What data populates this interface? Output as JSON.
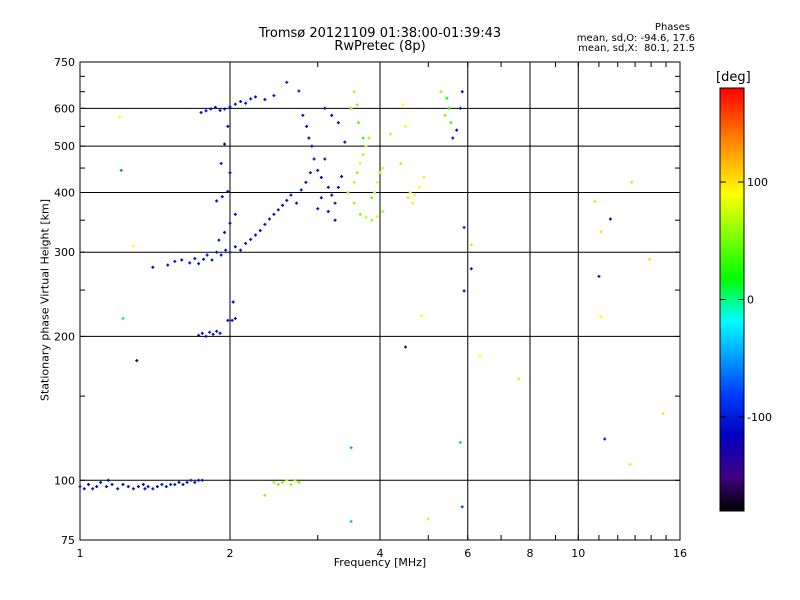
{
  "header": {
    "title": "Tromsø 20121109 01:38:00-01:39:43",
    "subtitle": "RwPretec (8p)",
    "phase_title": "Phases",
    "phase_o": "mean, sd,O: -94.6, 17.6",
    "phase_x": "mean, sd,X:  80.1, 21.5"
  },
  "colorbar": {
    "label": "[deg]",
    "ticks": [
      100,
      0,
      -100
    ],
    "range": [
      -180,
      180
    ],
    "colors": [
      "#ff0000",
      "#ff8000",
      "#ffff00",
      "#00ff00",
      "#00ffff",
      "#0040ff",
      "#0000c0",
      "#400080",
      "#000000"
    ]
  },
  "chart_data": {
    "type": "scatter",
    "title": "Tromsø 20121109 01:38:00-01:39:43",
    "subtitle": "RwPretec (8p)",
    "xlabel": "Frequency [MHz]",
    "ylabel": "Stationary phase Virtual Height [km]",
    "xscale": "log",
    "yscale": "log",
    "xlim": [
      1,
      16
    ],
    "ylim": [
      75,
      750
    ],
    "xticks": [
      1,
      2,
      4,
      6,
      8,
      10,
      16
    ],
    "xtick_labels": [
      "1",
      "2",
      "4",
      "6",
      "8",
      "10",
      "16"
    ],
    "yticks": [
      75,
      100,
      200,
      300,
      400,
      500,
      600,
      750
    ],
    "ytick_labels": [
      "75",
      "100",
      "200",
      "300",
      "400",
      "500",
      "600",
      "750"
    ],
    "grid": true,
    "color_scale": "phase [deg]",
    "points": [
      [
        1.0,
        97,
        -100
      ],
      [
        1.02,
        96,
        -105
      ],
      [
        1.04,
        98,
        -100
      ],
      [
        1.06,
        96,
        -95
      ],
      [
        1.08,
        97,
        -110
      ],
      [
        1.1,
        99,
        -100
      ],
      [
        1.13,
        97,
        -100
      ],
      [
        1.16,
        98,
        -95
      ],
      [
        1.19,
        96,
        -100
      ],
      [
        1.22,
        98,
        -110
      ],
      [
        1.25,
        97,
        -100
      ],
      [
        1.28,
        96,
        -95
      ],
      [
        1.31,
        97,
        -100
      ],
      [
        1.34,
        98,
        -105
      ],
      [
        1.37,
        97,
        -100
      ],
      [
        1.4,
        96,
        -95
      ],
      [
        1.43,
        97,
        -110
      ],
      [
        1.46,
        98,
        -100
      ],
      [
        1.49,
        97,
        -100
      ],
      [
        1.52,
        98,
        -95
      ],
      [
        1.55,
        98,
        -100
      ],
      [
        1.58,
        99,
        -105
      ],
      [
        1.61,
        98,
        -100
      ],
      [
        1.64,
        99,
        -100
      ],
      [
        1.67,
        100,
        -95
      ],
      [
        1.7,
        99,
        -105
      ],
      [
        1.73,
        100,
        -100
      ],
      [
        1.76,
        100,
        -95
      ],
      [
        1.14,
        100,
        -110
      ],
      [
        1.35,
        96,
        -105
      ],
      [
        1.73,
        201,
        -100
      ],
      [
        1.76,
        203,
        -105
      ],
      [
        1.79,
        200,
        -100
      ],
      [
        1.82,
        204,
        -95
      ],
      [
        1.85,
        202,
        -100
      ],
      [
        1.88,
        205,
        -100
      ],
      [
        1.91,
        203,
        -105
      ],
      [
        1.98,
        216,
        -100
      ],
      [
        2.02,
        216,
        -100
      ],
      [
        2.05,
        218,
        -95
      ],
      [
        2.03,
        236,
        -110
      ],
      [
        1.55,
        287,
        -100
      ],
      [
        1.6,
        289,
        -105
      ],
      [
        1.66,
        285,
        -100
      ],
      [
        1.7,
        291,
        -100
      ],
      [
        1.73,
        284,
        -95
      ],
      [
        1.77,
        290,
        -100
      ],
      [
        1.8,
        296,
        -100
      ],
      [
        1.84,
        289,
        -105
      ],
      [
        1.88,
        300,
        -100
      ],
      [
        1.92,
        296,
        -95
      ],
      [
        1.96,
        303,
        -100
      ],
      [
        2.0,
        300,
        -100
      ],
      [
        2.05,
        308,
        -105
      ],
      [
        2.1,
        303,
        -100
      ],
      [
        2.15,
        313,
        -95
      ],
      [
        2.2,
        319,
        -100
      ],
      [
        2.25,
        326,
        -100
      ],
      [
        2.3,
        333,
        -105
      ],
      [
        2.35,
        343,
        -100
      ],
      [
        2.4,
        352,
        -95
      ],
      [
        2.45,
        360,
        -100
      ],
      [
        2.5,
        368,
        -100
      ],
      [
        2.55,
        376,
        -105
      ],
      [
        2.6,
        385,
        -100
      ],
      [
        2.65,
        395,
        -95
      ],
      [
        2.72,
        380,
        -100
      ],
      [
        2.78,
        405,
        -100
      ],
      [
        2.84,
        420,
        -105
      ],
      [
        2.9,
        440,
        -100
      ],
      [
        1.9,
        318,
        -100
      ],
      [
        1.95,
        330,
        -105
      ],
      [
        2.0,
        345,
        -100
      ],
      [
        2.05,
        360,
        -100
      ],
      [
        1.88,
        384,
        -100
      ],
      [
        1.93,
        392,
        -105
      ],
      [
        1.98,
        402,
        -100
      ],
      [
        1.92,
        460,
        -100
      ],
      [
        2.0,
        440,
        -105
      ],
      [
        1.75,
        588,
        -100
      ],
      [
        1.79,
        593,
        -105
      ],
      [
        1.83,
        598,
        -100
      ],
      [
        1.87,
        603,
        -95
      ],
      [
        1.91,
        594,
        -100
      ],
      [
        1.95,
        598,
        -100
      ],
      [
        2.0,
        604,
        -105
      ],
      [
        2.05,
        612,
        -100
      ],
      [
        2.1,
        620,
        -95
      ],
      [
        2.15,
        615,
        -100
      ],
      [
        2.2,
        628,
        -100
      ],
      [
        2.25,
        634,
        -105
      ],
      [
        2.35,
        626,
        -100
      ],
      [
        2.45,
        638,
        -95
      ],
      [
        1.98,
        550,
        -100
      ],
      [
        1.95,
        505,
        -105
      ],
      [
        2.6,
        680,
        -90
      ],
      [
        2.75,
        652,
        -85
      ],
      [
        2.8,
        580,
        -100
      ],
      [
        2.85,
        550,
        -105
      ],
      [
        2.88,
        520,
        -110
      ],
      [
        2.92,
        500,
        -100
      ],
      [
        2.95,
        470,
        -120
      ],
      [
        3.0,
        445,
        -130
      ],
      [
        3.05,
        430,
        -110
      ],
      [
        3.1,
        470,
        -125
      ],
      [
        3.15,
        410,
        -140
      ],
      [
        3.2,
        395,
        -130
      ],
      [
        3.25,
        380,
        -145
      ],
      [
        3.3,
        410,
        -120
      ],
      [
        3.35,
        432,
        -110
      ],
      [
        3.1,
        600,
        -115
      ],
      [
        3.2,
        580,
        -110
      ],
      [
        3.3,
        560,
        -130
      ],
      [
        3.4,
        510,
        -125
      ],
      [
        3.15,
        365,
        -120
      ],
      [
        3.25,
        350,
        -110
      ],
      [
        3.05,
        390,
        -115
      ],
      [
        3.0,
        370,
        -100
      ],
      [
        3.45,
        400,
        70
      ],
      [
        3.55,
        420,
        80
      ],
      [
        3.6,
        440,
        65
      ],
      [
        3.65,
        460,
        90
      ],
      [
        3.7,
        480,
        75
      ],
      [
        3.75,
        500,
        85
      ],
      [
        3.8,
        520,
        70
      ],
      [
        3.85,
        390,
        60
      ],
      [
        3.9,
        400,
        80
      ],
      [
        3.95,
        420,
        90
      ],
      [
        4.0,
        440,
        75
      ],
      [
        4.05,
        450,
        85
      ],
      [
        3.55,
        380,
        70
      ],
      [
        3.65,
        360,
        60
      ],
      [
        3.75,
        355,
        80
      ],
      [
        3.85,
        350,
        70
      ],
      [
        3.95,
        356,
        90
      ],
      [
        4.05,
        365,
        75
      ],
      [
        3.5,
        600,
        60
      ],
      [
        3.55,
        650,
        75
      ],
      [
        3.62,
        560,
        50
      ],
      [
        3.7,
        520,
        40
      ],
      [
        3.6,
        610,
        65
      ],
      [
        4.2,
        530,
        80
      ],
      [
        4.4,
        460,
        85
      ],
      [
        4.6,
        400,
        90
      ],
      [
        4.7,
        395,
        95
      ],
      [
        4.8,
        410,
        100
      ],
      [
        4.9,
        430,
        90
      ],
      [
        4.55,
        390,
        110
      ],
      [
        4.65,
        380,
        105
      ],
      [
        5.4,
        580,
        60
      ],
      [
        5.45,
        630,
        30
      ],
      [
        5.5,
        600,
        40
      ],
      [
        5.55,
        560,
        50
      ],
      [
        5.3,
        650,
        70
      ],
      [
        5.6,
        520,
        -100
      ],
      [
        5.7,
        540,
        -110
      ],
      [
        5.8,
        600,
        -100
      ],
      [
        5.85,
        650,
        -105
      ],
      [
        4.45,
        610,
        100
      ],
      [
        4.5,
        550,
        95
      ],
      [
        2.45,
        99,
        70
      ],
      [
        2.5,
        98,
        60
      ],
      [
        2.55,
        99,
        65
      ],
      [
        2.6,
        100,
        80
      ],
      [
        2.65,
        98,
        70
      ],
      [
        2.7,
        100,
        75
      ],
      [
        2.75,
        99,
        60
      ],
      [
        2.35,
        93,
        120
      ],
      [
        1.2,
        575,
        100
      ],
      [
        1.21,
        445,
        -40
      ],
      [
        1.22,
        218,
        20
      ],
      [
        1.28,
        309,
        100
      ],
      [
        1.3,
        178,
        -170
      ],
      [
        1.4,
        279,
        -110
      ],
      [
        1.5,
        282,
        -105
      ],
      [
        4.5,
        190,
        -140
      ],
      [
        4.85,
        221,
        100
      ],
      [
        5.0,
        83,
        110
      ],
      [
        5.8,
        120,
        -20
      ],
      [
        5.85,
        88,
        -60
      ],
      [
        5.9,
        338,
        -80
      ],
      [
        5.9,
        249,
        -100
      ],
      [
        6.1,
        311,
        80
      ],
      [
        6.1,
        277,
        -110
      ],
      [
        6.35,
        182,
        100
      ],
      [
        7.6,
        163,
        110
      ],
      [
        3.5,
        117,
        -30
      ],
      [
        3.5,
        82,
        -20
      ],
      [
        11.0,
        267,
        -100
      ],
      [
        11.1,
        220,
        100
      ],
      [
        11.3,
        122,
        -90
      ],
      [
        11.6,
        352,
        -110
      ],
      [
        12.7,
        108,
        110
      ],
      [
        12.8,
        420,
        110
      ],
      [
        13.9,
        290,
        110
      ],
      [
        14.8,
        138,
        110
      ],
      [
        11.1,
        331,
        110
      ],
      [
        10.8,
        383,
        110
      ]
    ]
  }
}
